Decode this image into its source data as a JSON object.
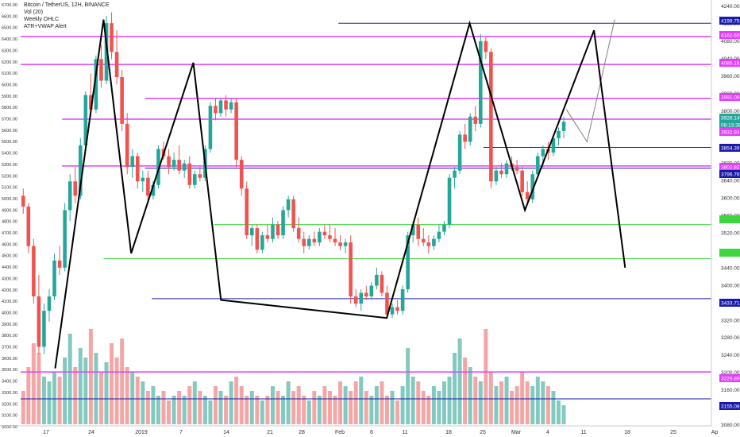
{
  "chart_data": {
    "type": "candlestick",
    "title": "Bitcoin / TetherUS, 12H, BINANCE",
    "indicators": [
      "Vol (20)",
      "Weekly OHLC",
      "ATR+VWAP Alert"
    ],
    "colors": {
      "up": "#26a69a",
      "down": "#ef5350",
      "up_vol": "#84c9c0",
      "down_vol": "#f4a6a6",
      "pink": "#e040fb",
      "blue": "#1a1aa8",
      "green": "#3ed63e",
      "grey": "#808080"
    },
    "left_axis": {
      "ticks": [
        "6700.00",
        "6600.00",
        "6500.00",
        "6400.00",
        "6300.00",
        "6200.00",
        "6100.00",
        "6000.00",
        "5900.00",
        "5800.00",
        "5700.00",
        "5600.00",
        "5500.00",
        "5400.00",
        "5300.00",
        "5200.00",
        "5100.00",
        "5000.00",
        "4900.00",
        "4800.00",
        "4700.00",
        "4600.00",
        "4500.00",
        "4400.00",
        "4300.00",
        "4200.00",
        "4100.00",
        "4000.00",
        "3900.00",
        "3800.00",
        "3700.00",
        "3600.00",
        "3500.00",
        "3400.00",
        "3300.00",
        "3200.00",
        "3100.00",
        "3000.00"
      ]
    },
    "right_axis": {
      "ticks": [
        "4240.00",
        "4160.00",
        "4080.00",
        "4040.00",
        "3960.00",
        "3880.00",
        "3800.00",
        "3760.00",
        "3720.00",
        "3680.00",
        "3640.00",
        "3600.00",
        "3560.00",
        "3520.00",
        "3480.00",
        "3440.00",
        "3400.00",
        "3360.00",
        "3320.00",
        "3280.00",
        "3240.00",
        "3200.00",
        "3160.00",
        "3120.00",
        "3080.00"
      ]
    },
    "x_axis": {
      "ticks": [
        "17",
        "24",
        "2019",
        "7",
        "14",
        "21",
        "28",
        "Feb",
        "6",
        "11",
        "18",
        "25",
        "Mar",
        "4",
        "11",
        "18",
        "25",
        "Ap"
      ]
    },
    "price_labels": [
      {
        "text": "4199.75",
        "color": "#1a1aa8"
      },
      {
        "text": "4162.69",
        "color": "#e040fb"
      },
      {
        "text": "4085.18",
        "color": "#e040fb"
      },
      {
        "text": "3991.06",
        "color": "#e040fb"
      },
      {
        "text": "3926.14",
        "color": "#26a69a"
      },
      {
        "text": "08:13:38",
        "color": "#26a69a"
      },
      {
        "text": "3932.93",
        "color": "#e040fb"
      },
      {
        "text": "3854.39",
        "color": "#1a1aa8"
      },
      {
        "text": "3802.82",
        "color": "#e040fb"
      },
      {
        "text": "3796.76",
        "color": "#1a1aa8"
      },
      {
        "text": "3433.71",
        "color": "#1a1aa8"
      },
      {
        "text": "3229.89",
        "color": "#e040fb"
      },
      {
        "text": "3155.08",
        "color": "#1a1aa8"
      }
    ],
    "candles": [
      {
        "o": 3720,
        "h": 3740,
        "l": 3670,
        "c": 3690
      },
      {
        "o": 3690,
        "h": 3700,
        "l": 3560,
        "c": 3580
      },
      {
        "o": 3580,
        "h": 3600,
        "l": 3420,
        "c": 3440
      },
      {
        "o": 3440,
        "h": 3500,
        "l": 3280,
        "c": 3300
      },
      {
        "o": 3300,
        "h": 3420,
        "l": 3280,
        "c": 3400
      },
      {
        "o": 3400,
        "h": 3460,
        "l": 3370,
        "c": 3440
      },
      {
        "o": 3440,
        "h": 3560,
        "l": 3430,
        "c": 3540
      },
      {
        "o": 3540,
        "h": 3580,
        "l": 3500,
        "c": 3520
      },
      {
        "o": 3520,
        "h": 3700,
        "l": 3510,
        "c": 3680
      },
      {
        "o": 3680,
        "h": 3780,
        "l": 3650,
        "c": 3760
      },
      {
        "o": 3760,
        "h": 3800,
        "l": 3700,
        "c": 3720
      },
      {
        "o": 3720,
        "h": 3880,
        "l": 3710,
        "c": 3860
      },
      {
        "o": 3860,
        "h": 4010,
        "l": 3850,
        "c": 4000
      },
      {
        "o": 4000,
        "h": 4060,
        "l": 3940,
        "c": 3960
      },
      {
        "o": 3960,
        "h": 4110,
        "l": 3950,
        "c": 4100
      },
      {
        "o": 4100,
        "h": 4140,
        "l": 4020,
        "c": 4040
      },
      {
        "o": 4040,
        "h": 4220,
        "l": 4030,
        "c": 4200
      },
      {
        "o": 4200,
        "h": 4230,
        "l": 4100,
        "c": 4120
      },
      {
        "o": 4120,
        "h": 4180,
        "l": 4030,
        "c": 4050
      },
      {
        "o": 4050,
        "h": 4070,
        "l": 3900,
        "c": 3920
      },
      {
        "o": 3920,
        "h": 3950,
        "l": 3780,
        "c": 3800
      },
      {
        "o": 3800,
        "h": 3850,
        "l": 3770,
        "c": 3830
      },
      {
        "o": 3830,
        "h": 3840,
        "l": 3740,
        "c": 3760
      },
      {
        "o": 3760,
        "h": 3790,
        "l": 3730,
        "c": 3770
      },
      {
        "o": 3770,
        "h": 3790,
        "l": 3700,
        "c": 3720
      },
      {
        "o": 3720,
        "h": 3760,
        "l": 3710,
        "c": 3750
      },
      {
        "o": 3750,
        "h": 3860,
        "l": 3740,
        "c": 3850
      },
      {
        "o": 3850,
        "h": 3870,
        "l": 3820,
        "c": 3830
      },
      {
        "o": 3830,
        "h": 3850,
        "l": 3780,
        "c": 3800
      },
      {
        "o": 3800,
        "h": 3840,
        "l": 3790,
        "c": 3820
      },
      {
        "o": 3820,
        "h": 3860,
        "l": 3780,
        "c": 3790
      },
      {
        "o": 3790,
        "h": 3820,
        "l": 3770,
        "c": 3810
      },
      {
        "o": 3810,
        "h": 3830,
        "l": 3740,
        "c": 3750
      },
      {
        "o": 3750,
        "h": 3790,
        "l": 3740,
        "c": 3780
      },
      {
        "o": 3780,
        "h": 3800,
        "l": 3760,
        "c": 3770
      },
      {
        "o": 3770,
        "h": 3860,
        "l": 3760,
        "c": 3850
      },
      {
        "o": 3850,
        "h": 3980,
        "l": 3840,
        "c": 3970
      },
      {
        "o": 3970,
        "h": 3990,
        "l": 3930,
        "c": 3950
      },
      {
        "o": 3950,
        "h": 3990,
        "l": 3940,
        "c": 3985
      },
      {
        "o": 3985,
        "h": 4000,
        "l": 3940,
        "c": 3960
      },
      {
        "o": 3960,
        "h": 3990,
        "l": 3950,
        "c": 3980
      },
      {
        "o": 3980,
        "h": 3990,
        "l": 3800,
        "c": 3820
      },
      {
        "o": 3820,
        "h": 3830,
        "l": 3720,
        "c": 3740
      },
      {
        "o": 3740,
        "h": 3760,
        "l": 3600,
        "c": 3610
      },
      {
        "o": 3610,
        "h": 3640,
        "l": 3580,
        "c": 3630
      },
      {
        "o": 3630,
        "h": 3640,
        "l": 3560,
        "c": 3570
      },
      {
        "o": 3570,
        "h": 3620,
        "l": 3560,
        "c": 3610
      },
      {
        "o": 3610,
        "h": 3640,
        "l": 3590,
        "c": 3600
      },
      {
        "o": 3600,
        "h": 3660,
        "l": 3590,
        "c": 3640
      },
      {
        "o": 3640,
        "h": 3650,
        "l": 3600,
        "c": 3610
      },
      {
        "o": 3610,
        "h": 3690,
        "l": 3600,
        "c": 3680
      },
      {
        "o": 3680,
        "h": 3720,
        "l": 3660,
        "c": 3710
      },
      {
        "o": 3710,
        "h": 3720,
        "l": 3620,
        "c": 3630
      },
      {
        "o": 3630,
        "h": 3660,
        "l": 3590,
        "c": 3600
      },
      {
        "o": 3600,
        "h": 3620,
        "l": 3560,
        "c": 3580
      },
      {
        "o": 3580,
        "h": 3610,
        "l": 3570,
        "c": 3600
      },
      {
        "o": 3600,
        "h": 3620,
        "l": 3580,
        "c": 3590
      },
      {
        "o": 3590,
        "h": 3630,
        "l": 3580,
        "c": 3620
      },
      {
        "o": 3620,
        "h": 3640,
        "l": 3600,
        "c": 3610
      },
      {
        "o": 3610,
        "h": 3640,
        "l": 3590,
        "c": 3600
      },
      {
        "o": 3600,
        "h": 3630,
        "l": 3580,
        "c": 3590
      },
      {
        "o": 3590,
        "h": 3610,
        "l": 3570,
        "c": 3580
      },
      {
        "o": 3580,
        "h": 3600,
        "l": 3560,
        "c": 3590
      },
      {
        "o": 3590,
        "h": 3610,
        "l": 3420,
        "c": 3440
      },
      {
        "o": 3440,
        "h": 3460,
        "l": 3410,
        "c": 3420
      },
      {
        "o": 3420,
        "h": 3460,
        "l": 3400,
        "c": 3450
      },
      {
        "o": 3450,
        "h": 3470,
        "l": 3430,
        "c": 3440
      },
      {
        "o": 3440,
        "h": 3480,
        "l": 3430,
        "c": 3470
      },
      {
        "o": 3470,
        "h": 3520,
        "l": 3460,
        "c": 3500
      },
      {
        "o": 3500,
        "h": 3510,
        "l": 3440,
        "c": 3450
      },
      {
        "o": 3450,
        "h": 3470,
        "l": 3380,
        "c": 3390
      },
      {
        "o": 3390,
        "h": 3420,
        "l": 3380,
        "c": 3410
      },
      {
        "o": 3410,
        "h": 3430,
        "l": 3390,
        "c": 3400
      },
      {
        "o": 3400,
        "h": 3470,
        "l": 3390,
        "c": 3460
      },
      {
        "o": 3460,
        "h": 3620,
        "l": 3450,
        "c": 3610
      },
      {
        "o": 3610,
        "h": 3650,
        "l": 3590,
        "c": 3640
      },
      {
        "o": 3640,
        "h": 3660,
        "l": 3580,
        "c": 3600
      },
      {
        "o": 3600,
        "h": 3630,
        "l": 3580,
        "c": 3590
      },
      {
        "o": 3590,
        "h": 3610,
        "l": 3560,
        "c": 3580
      },
      {
        "o": 3580,
        "h": 3610,
        "l": 3570,
        "c": 3600
      },
      {
        "o": 3600,
        "h": 3640,
        "l": 3590,
        "c": 3620
      },
      {
        "o": 3620,
        "h": 3650,
        "l": 3610,
        "c": 3640
      },
      {
        "o": 3640,
        "h": 3780,
        "l": 3630,
        "c": 3770
      },
      {
        "o": 3770,
        "h": 3800,
        "l": 3740,
        "c": 3790
      },
      {
        "o": 3790,
        "h": 3900,
        "l": 3780,
        "c": 3890
      },
      {
        "o": 3890,
        "h": 3920,
        "l": 3850,
        "c": 3870
      },
      {
        "o": 3870,
        "h": 3950,
        "l": 3860,
        "c": 3940
      },
      {
        "o": 3940,
        "h": 3970,
        "l": 3900,
        "c": 3920
      },
      {
        "o": 3920,
        "h": 4170,
        "l": 3910,
        "c": 4150
      },
      {
        "o": 4150,
        "h": 4160,
        "l": 4100,
        "c": 4120
      },
      {
        "o": 4120,
        "h": 4130,
        "l": 3740,
        "c": 3760
      },
      {
        "o": 3760,
        "h": 3800,
        "l": 3750,
        "c": 3790
      },
      {
        "o": 3790,
        "h": 3810,
        "l": 3770,
        "c": 3780
      },
      {
        "o": 3780,
        "h": 3820,
        "l": 3770,
        "c": 3810
      },
      {
        "o": 3810,
        "h": 3830,
        "l": 3790,
        "c": 3800
      },
      {
        "o": 3800,
        "h": 3820,
        "l": 3780,
        "c": 3790
      },
      {
        "o": 3790,
        "h": 3800,
        "l": 3720,
        "c": 3730
      },
      {
        "o": 3730,
        "h": 3760,
        "l": 3700,
        "c": 3710
      },
      {
        "o": 3710,
        "h": 3790,
        "l": 3700,
        "c": 3780
      },
      {
        "o": 3780,
        "h": 3840,
        "l": 3770,
        "c": 3830
      },
      {
        "o": 3830,
        "h": 3860,
        "l": 3800,
        "c": 3850
      },
      {
        "o": 3850,
        "h": 3870,
        "l": 3820,
        "c": 3840
      },
      {
        "o": 3840,
        "h": 3890,
        "l": 3830,
        "c": 3880
      },
      {
        "o": 3880,
        "h": 3910,
        "l": 3860,
        "c": 3900
      },
      {
        "o": 3900,
        "h": 3940,
        "l": 3880,
        "c": 3926
      }
    ],
    "volumes": [
      0.35,
      0.6,
      0.85,
      0.75,
      0.5,
      0.45,
      0.55,
      0.5,
      0.7,
      0.95,
      0.6,
      0.8,
      0.7,
      1.0,
      0.75,
      0.55,
      0.65,
      0.85,
      0.7,
      0.9,
      0.6,
      0.55,
      0.5,
      0.45,
      0.35,
      0.4,
      0.3,
      0.35,
      0.25,
      0.3,
      0.35,
      0.3,
      0.4,
      0.45,
      0.35,
      0.3,
      0.25,
      0.4,
      0.35,
      0.3,
      0.45,
      0.5,
      0.4,
      0.3,
      0.35,
      0.3,
      0.25,
      0.3,
      0.4,
      0.35,
      0.3,
      0.45,
      0.35,
      0.4,
      0.3,
      0.25,
      0.35,
      0.3,
      0.4,
      0.35,
      0.3,
      0.45,
      0.4,
      0.35,
      0.45,
      0.5,
      0.35,
      0.3,
      0.4,
      0.45,
      0.3,
      0.35,
      0.25,
      0.4,
      0.8,
      0.5,
      0.45,
      0.35,
      0.3,
      0.4,
      0.35,
      0.45,
      0.5,
      0.75,
      0.9,
      0.7,
      0.6,
      0.5,
      0.45,
      1.0,
      0.55,
      0.4,
      0.45,
      0.5,
      0.35,
      0.4,
      0.55,
      0.45,
      0.4,
      0.5,
      0.45,
      0.4,
      0.35,
      0.25,
      0.2
    ],
    "horizontal_levels": [
      {
        "price": 4199.75,
        "color": "#1a1aa8",
        "from": 0.46,
        "width": 1
      },
      {
        "price": 4162.69,
        "color": "#e040fb",
        "from": 0.0,
        "width": 1.5
      },
      {
        "price": 4085.18,
        "color": "#e040fb",
        "from": 0.0,
        "width": 1.5
      },
      {
        "price": 3991.06,
        "color": "#e040fb",
        "from": 0.18,
        "width": 1.5
      },
      {
        "price": 3932.93,
        "color": "#e040fb",
        "from": 0.06,
        "width": 1.5
      },
      {
        "price": 3854.39,
        "color": "#1a1aa8",
        "from": 0.67,
        "width": 1
      },
      {
        "price": 3802.82,
        "color": "#e040fb",
        "from": 0.06,
        "width": 1.5
      },
      {
        "price": 3796.76,
        "color": "#1a1aa8",
        "from": 0.18,
        "width": 1
      },
      {
        "price": 3640.0,
        "color": "#3ed63e",
        "from": 0.28,
        "width": 1
      },
      {
        "price": 3545.0,
        "color": "#3ed63e",
        "from": 0.12,
        "width": 1
      },
      {
        "price": 3433.71,
        "color": "#1a1aa8",
        "from": 0.19,
        "width": 1
      },
      {
        "price": 3229.89,
        "color": "#e040fb",
        "from": 0.0,
        "width": 1.5
      },
      {
        "price": 3155.08,
        "color": "#1a1aa8",
        "from": 0.0,
        "width": 1
      }
    ],
    "zigzag_black": [
      [
        0.05,
        3240
      ],
      [
        0.12,
        4210
      ],
      [
        0.16,
        3560
      ],
      [
        0.25,
        4090
      ],
      [
        0.29,
        3430
      ],
      [
        0.53,
        3380
      ],
      [
        0.65,
        4200
      ],
      [
        0.73,
        3680
      ],
      [
        0.83,
        4180
      ],
      [
        0.875,
        3520
      ]
    ],
    "zigzag_grey": [
      [
        0.79,
        3960
      ],
      [
        0.82,
        3870
      ],
      [
        0.86,
        4210
      ]
    ],
    "ylim": [
      3080,
      4260
    ]
  }
}
